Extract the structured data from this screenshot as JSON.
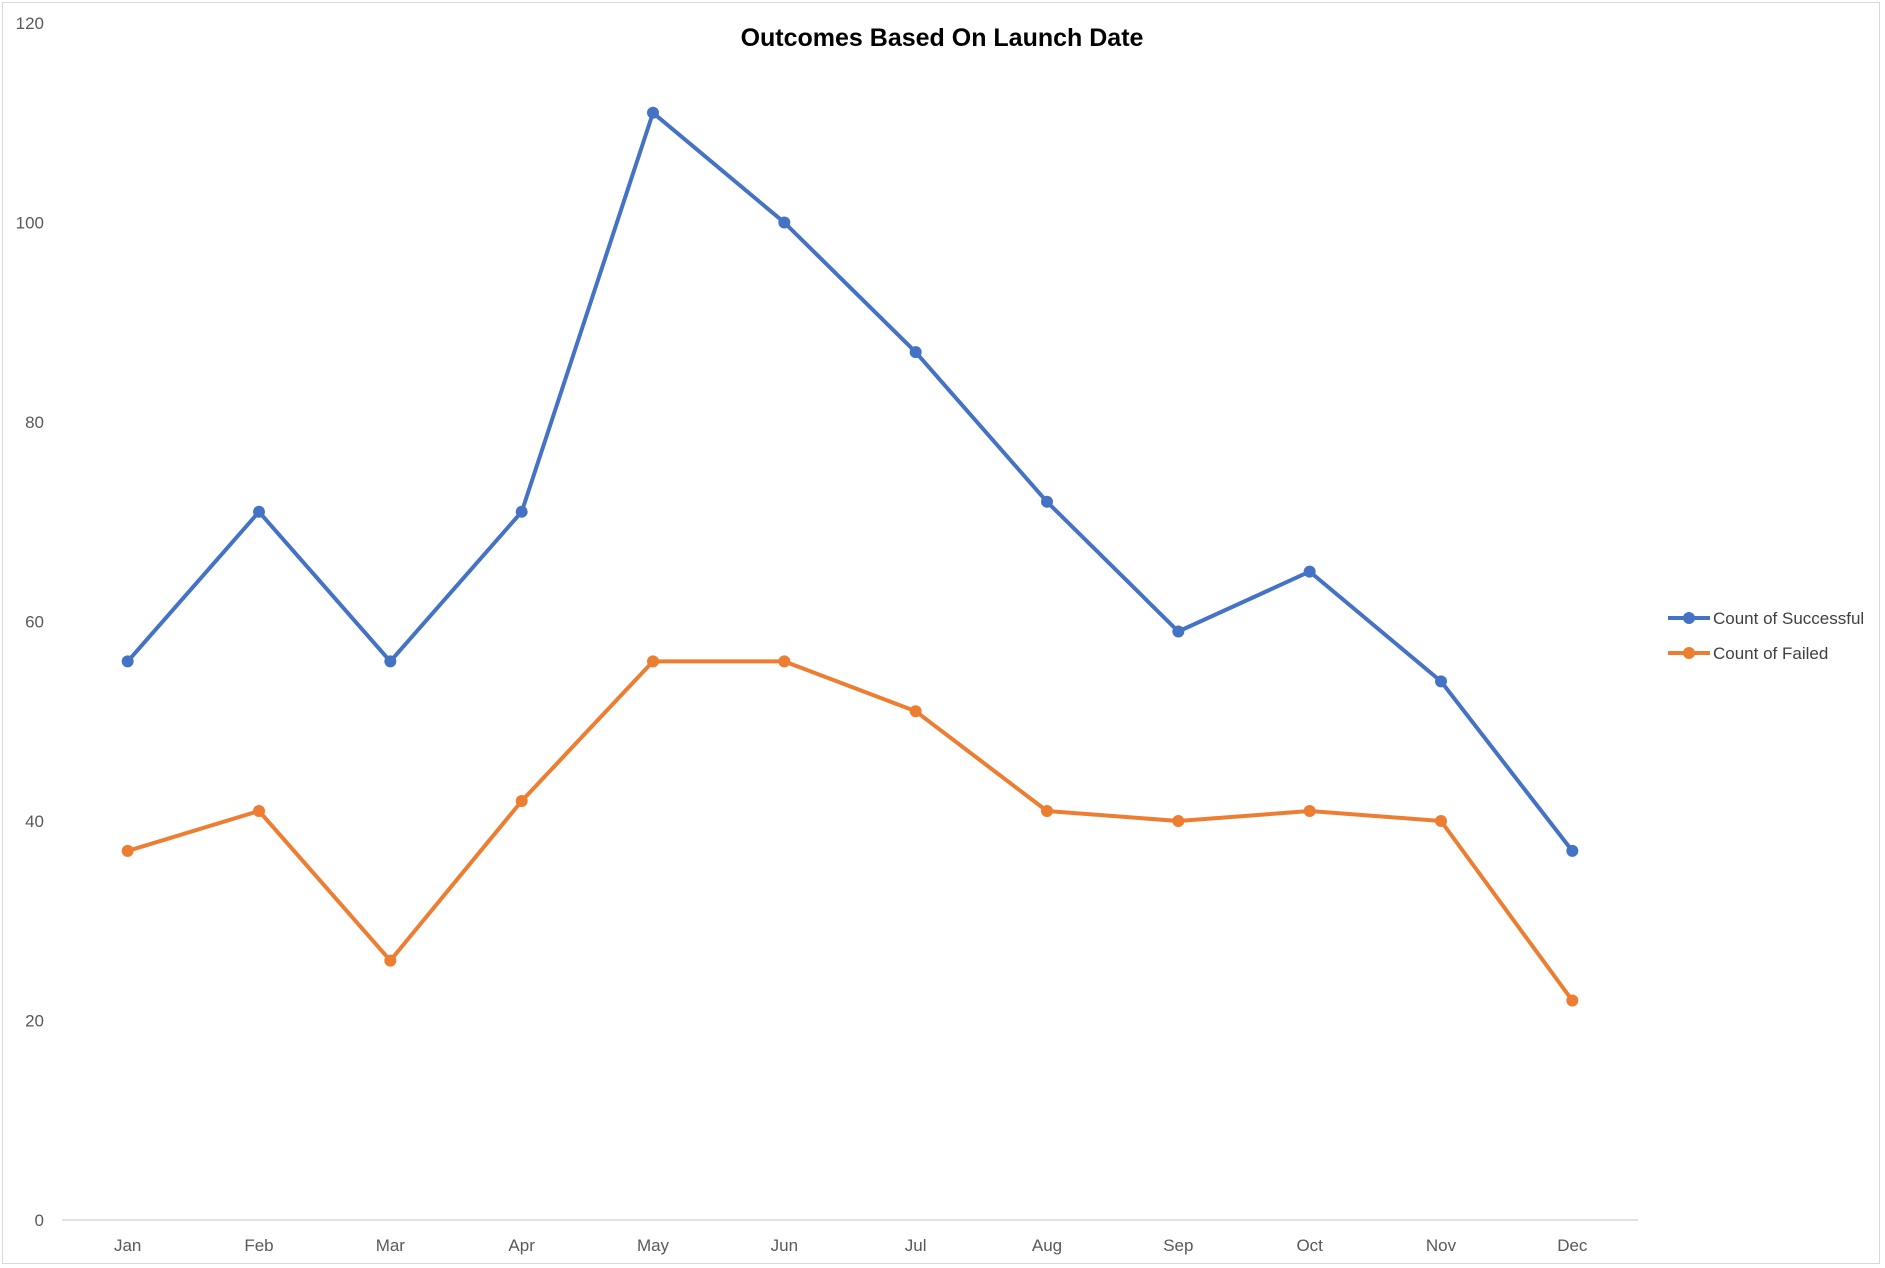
{
  "chart_data": {
    "type": "line",
    "title": "Outcomes Based On Launch Date",
    "xlabel": "",
    "ylabel": "",
    "categories": [
      "Jan",
      "Feb",
      "Mar",
      "Apr",
      "May",
      "Jun",
      "Jul",
      "Aug",
      "Sep",
      "Oct",
      "Nov",
      "Dec"
    ],
    "series": [
      {
        "name": "Count of Successful",
        "color": "#4472C4",
        "values": [
          56,
          71,
          56,
          71,
          111,
          100,
          87,
          72,
          59,
          65,
          54,
          37
        ]
      },
      {
        "name": "Count of Failed",
        "color": "#ED7D31",
        "values": [
          37,
          41,
          26,
          42,
          56,
          56,
          51,
          41,
          40,
          41,
          40,
          22
        ]
      }
    ],
    "ylim": [
      0,
      120
    ],
    "yticks": [
      0,
      20,
      40,
      60,
      80,
      100,
      120
    ],
    "grid": false,
    "legend_position": "right"
  }
}
